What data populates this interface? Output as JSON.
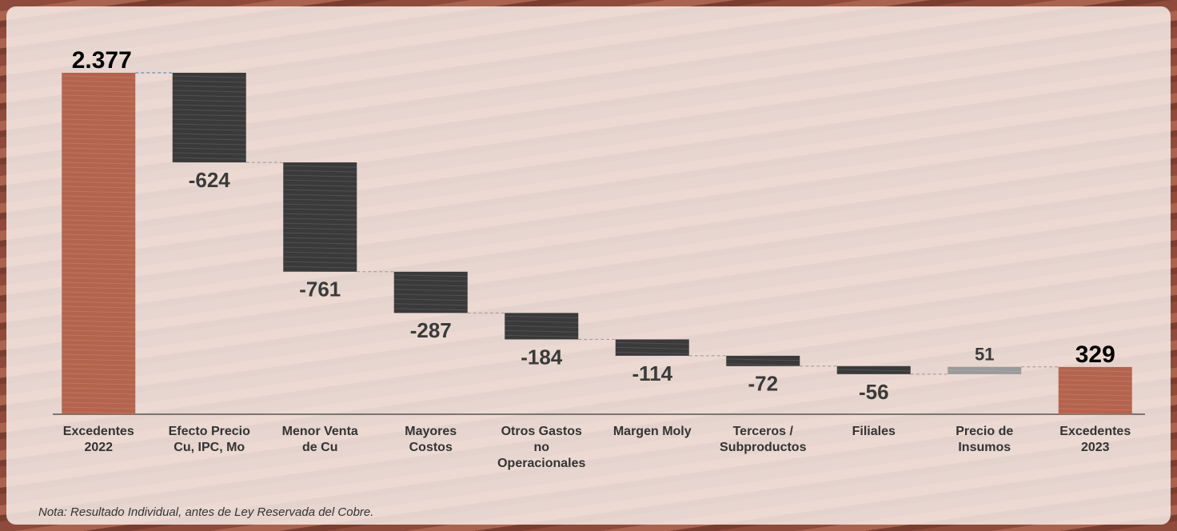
{
  "chart_data": {
    "type": "waterfall",
    "categories": [
      "Excedentes\n2022",
      "Efecto Precio\nCu, IPC, Mo",
      "Menor Venta\nde Cu",
      "Mayores\nCostos",
      "Otros Gastos\nno\nOperacionales",
      "Margen Moly",
      "Terceros /\nSubproductos",
      "Filiales",
      "Precio de\nInsumos",
      "Excedentes\n2023"
    ],
    "values": [
      2377,
      -624,
      -761,
      -287,
      -184,
      -114,
      -72,
      -56,
      51,
      329
    ],
    "value_labels": [
      "2.377",
      "-624",
      "-761",
      "-287",
      "-184",
      "-114",
      "-72",
      "-56",
      "51",
      "329"
    ],
    "colors": {
      "total": "#b4644c",
      "decrease": "#3a3a3a",
      "increase": "#9a9a9a"
    },
    "note": "Nota: Resultado Individual, antes de Ley Reservada del Cobre."
  }
}
